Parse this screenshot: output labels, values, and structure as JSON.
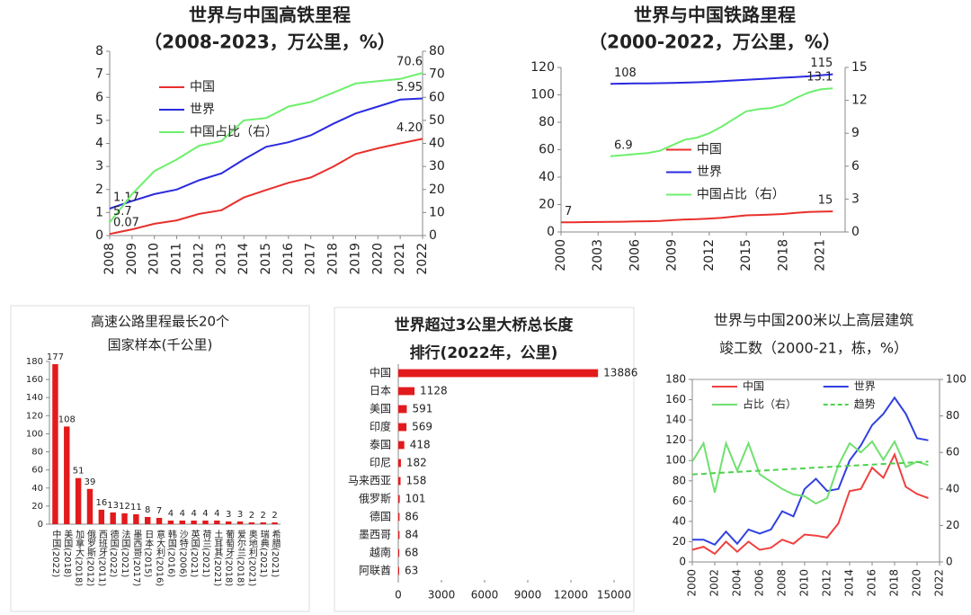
{
  "chart_data": [
    {
      "type": "line",
      "title": "世界与中国高铁里程",
      "subtitle": "（2008-2023，万公里，%）",
      "x": [
        2008,
        2009,
        2010,
        2011,
        2012,
        2013,
        2014,
        2015,
        2016,
        2017,
        2018,
        2019,
        2020,
        2021,
        2022
      ],
      "xlim": [
        2008,
        2022
      ],
      "xticks": [
        2008,
        2009,
        2010,
        2011,
        2012,
        2013,
        2014,
        2015,
        2016,
        2017,
        2018,
        2019,
        2020,
        2021,
        2022
      ],
      "ylim": [
        0,
        8
      ],
      "yticks": [
        0,
        1,
        2,
        3,
        4,
        5,
        6,
        7,
        8
      ],
      "y2lim": [
        0,
        80
      ],
      "y2ticks": [
        0,
        10,
        20,
        30,
        40,
        50,
        60,
        70,
        80
      ],
      "legend": "upper left",
      "data_labels": "ends",
      "series": [
        {
          "name": "中国",
          "color": "#e8302c",
          "values": [
            0.07,
            0.27,
            0.51,
            0.66,
            0.94,
            1.1,
            1.65,
            1.98,
            2.29,
            2.52,
            2.99,
            3.54,
            3.79,
            4.0,
            4.2
          ],
          "value_labels": [
            "0.07",
            null,
            null,
            null,
            null,
            null,
            null,
            null,
            null,
            null,
            null,
            null,
            null,
            null,
            "4.20"
          ]
        },
        {
          "name": "世界",
          "color": "#2a2ae0",
          "values": [
            1.17,
            1.5,
            1.8,
            2.0,
            2.4,
            2.7,
            3.3,
            3.85,
            4.05,
            4.35,
            4.85,
            5.3,
            5.6,
            5.9,
            5.95
          ]
        },
        {
          "name": "中国占比（右）",
          "color": "#6cf06c",
          "axis": "y2",
          "values": [
            5.7,
            18,
            28,
            33,
            39,
            41,
            50,
            51,
            56,
            58,
            62,
            66,
            67,
            68,
            70.6
          ]
        }
      ]
    },
    {
      "type": "line",
      "title": "世界与中国铁路里程",
      "subtitle": "（2000-2022，万公里，%）",
      "x": [
        2000,
        2001,
        2002,
        2003,
        2004,
        2005,
        2006,
        2007,
        2008,
        2009,
        2010,
        2011,
        2012,
        2013,
        2014,
        2015,
        2016,
        2017,
        2018,
        2019,
        2020,
        2021,
        2022
      ],
      "xlim": [
        2000,
        2023
      ],
      "xticks": [
        2000,
        2003,
        2006,
        2009,
        2012,
        2015,
        2018,
        2021
      ],
      "ylim": [
        0,
        120
      ],
      "yticks": [
        0,
        20,
        40,
        60,
        80,
        100,
        120
      ],
      "y2lim": [
        0,
        15
      ],
      "y2ticks": [
        0,
        3,
        6,
        9,
        12,
        15
      ],
      "legend": "center right",
      "data_labels": "ends",
      "series": [
        {
          "name": "中国",
          "color": "#e8302c",
          "values": [
            7,
            7.0,
            7.2,
            7.3,
            7.4,
            7.5,
            7.7,
            7.8,
            8.0,
            8.6,
            9.1,
            9.3,
            9.8,
            10.3,
            11.2,
            12.1,
            12.4,
            12.7,
            13.1,
            13.9,
            14.6,
            14.8,
            15
          ]
        },
        {
          "name": "世界",
          "color": "#2a2ae0",
          "values": [
            null,
            null,
            null,
            null,
            108,
            108.2,
            108.3,
            108.3,
            108.5,
            108.7,
            108.9,
            109.2,
            109.5,
            110,
            110.5,
            111,
            111.5,
            112,
            112.5,
            113,
            113.5,
            114.2,
            115
          ]
        },
        {
          "name": "中国占比（右）",
          "color": "#6cf06c",
          "axis": "y2",
          "values": [
            null,
            null,
            null,
            null,
            6.9,
            7.0,
            7.1,
            7.2,
            7.4,
            7.9,
            8.4,
            8.6,
            9.0,
            9.6,
            10.3,
            11.0,
            11.2,
            11.3,
            11.6,
            12.2,
            12.7,
            13.0,
            13.1
          ]
        }
      ]
    },
    {
      "type": "bar",
      "title": "高速公路里程最长20个",
      "subtitle": "国家样本(千公里)",
      "categories": [
        "中国(2022)",
        "美国(2018)",
        "加拿大(2018)",
        "俄罗斯(2012)",
        "西班牙(2011)",
        "德国(2022)",
        "法国(2021)",
        "墨西哥(2017)",
        "日本(2015)",
        "意大利(2016)",
        "韩国(2016)",
        "沙特(2006)",
        "英国(2021)",
        "荷兰(2021)",
        "土耳其(2021)",
        "葡萄牙(2018)",
        "爱尔兰(2018)",
        "奥地利(2021)",
        "瑞典(2021)",
        "希腊(2021)"
      ],
      "values": [
        177,
        108,
        51,
        39,
        16,
        13,
        12,
        11,
        8,
        7,
        4,
        4,
        4,
        4,
        4,
        3,
        3,
        2,
        2,
        2
      ],
      "color": "#e31a1c",
      "label_color": "#3c3cc8",
      "data_labels": true,
      "ylim": [
        0,
        180
      ],
      "yticks": [
        0,
        20,
        40,
        60,
        80,
        100,
        120,
        140,
        160,
        180
      ]
    },
    {
      "type": "barh",
      "title": "世界超过3公里大桥总长度",
      "subtitle": "排行(2022年，公里)",
      "categories": [
        "中国",
        "日本",
        "美国",
        "印度",
        "泰国",
        "印尼",
        "马来西亚",
        "俄罗斯",
        "德国",
        "墨西哥",
        "越南",
        "阿联酋"
      ],
      "values": [
        13886,
        1128,
        591,
        569,
        418,
        182,
        158,
        101,
        86,
        84,
        68,
        63
      ],
      "color": "#e31a1c",
      "label_color": "#3c3cc8",
      "data_labels": true,
      "xlim": [
        0,
        15000
      ],
      "xticks": [
        0,
        3000,
        6000,
        9000,
        12000,
        15000
      ]
    },
    {
      "type": "line",
      "title": "世界与中国200米以上高层建筑",
      "subtitle": "竣工数（2000-21，栋，%）",
      "x": [
        2000,
        2001,
        2002,
        2003,
        2004,
        2005,
        2006,
        2007,
        2008,
        2009,
        2010,
        2011,
        2012,
        2013,
        2014,
        2015,
        2016,
        2017,
        2018,
        2019,
        2020,
        2021
      ],
      "xlim": [
        2000,
        2022
      ],
      "xticks": [
        2000,
        2002,
        2004,
        2006,
        2008,
        2010,
        2012,
        2014,
        2016,
        2018,
        2020,
        2022
      ],
      "ylim": [
        0,
        180
      ],
      "yticks": [
        0,
        20,
        40,
        60,
        80,
        100,
        120,
        140,
        160,
        180
      ],
      "y2lim": [
        0,
        100
      ],
      "y2ticks": [
        0,
        20,
        40,
        60,
        80,
        100
      ],
      "legend": "upper center",
      "series": [
        {
          "name": "中国",
          "color": "#f04040",
          "values": [
            12,
            15,
            8,
            20,
            10,
            20,
            12,
            14,
            22,
            18,
            27,
            26,
            24,
            38,
            70,
            72,
            93,
            83,
            106,
            74,
            67,
            63
          ]
        },
        {
          "name": "世界",
          "color": "#3040e0",
          "values": [
            22,
            22,
            17,
            30,
            18,
            32,
            28,
            32,
            50,
            45,
            72,
            82,
            70,
            72,
            100,
            115,
            135,
            146,
            162,
            146,
            122,
            120
          ]
        },
        {
          "name": "占比（右）",
          "color": "#70e070",
          "axis": "y2",
          "values": [
            55,
            65,
            38,
            65,
            50,
            65,
            48,
            44,
            40,
            37,
            36,
            32,
            35,
            53,
            65,
            60,
            66,
            56,
            66,
            52,
            55,
            53
          ]
        },
        {
          "name": "趋势",
          "color": "#50d050",
          "axis": "y2",
          "dash": true,
          "values": [
            48.0,
            48.3,
            48.7,
            49.0,
            49.3,
            49.7,
            50.0,
            50.3,
            50.7,
            51.0,
            51.3,
            51.7,
            52.0,
            52.3,
            52.7,
            53.0,
            53.3,
            53.7,
            54.0,
            54.3,
            54.7,
            55.0
          ]
        }
      ]
    }
  ]
}
